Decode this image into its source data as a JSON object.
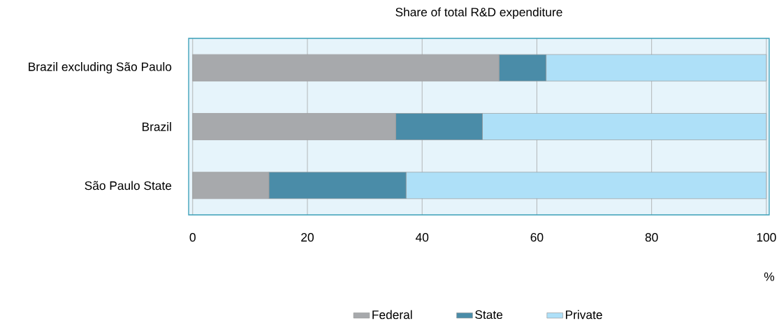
{
  "chart_data": {
    "type": "bar",
    "orientation": "horizontal",
    "stacked": true,
    "title": "Share of total R&D expenditure",
    "xlabel": "%",
    "categories": [
      "Brazil excluding São Paulo",
      "Brazil",
      "São Paulo State"
    ],
    "series": [
      {
        "name": "Federal",
        "color": "#a7a9ac",
        "values": [
          53.4,
          35.4,
          13.3
        ]
      },
      {
        "name": "State",
        "color": "#4a8ca8",
        "values": [
          8.2,
          15.1,
          23.9
        ]
      },
      {
        "name": "Private",
        "color": "#aee0f8",
        "values": [
          38.4,
          49.5,
          62.8
        ]
      }
    ],
    "xlim": [
      -0.7,
      100.5
    ],
    "xticks": [
      0,
      20,
      40,
      60,
      80,
      100
    ],
    "grid": "x",
    "legend": "bottom"
  }
}
